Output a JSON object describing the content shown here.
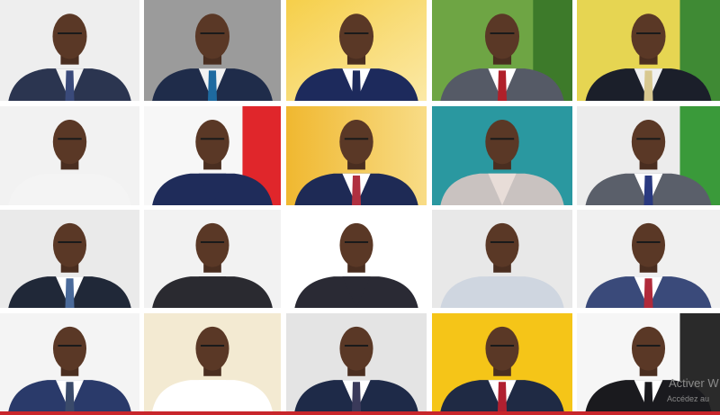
{
  "watermark": {
    "line1": "Activer W",
    "line2": "Accédez au"
  }
}
